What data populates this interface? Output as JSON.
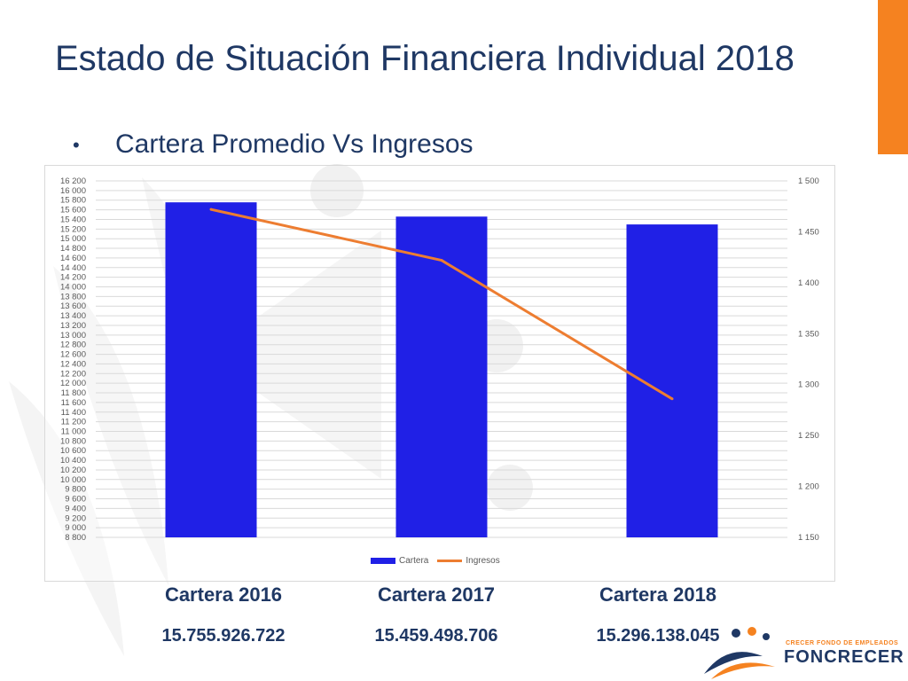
{
  "slide": {
    "title": "Estado de Situación Financiera Individual 2018",
    "bullet": "•",
    "subtitle": "Cartera Promedio Vs Ingresos",
    "logo_tagline": "CRECER FONDO DE EMPLEADOS",
    "logo_name": "FONCRECER",
    "accent_color": "#f58220",
    "title_color": "#1f3864"
  },
  "summary": [
    {
      "label": "Cartera 2016",
      "value": "15.755.926.722"
    },
    {
      "label": "Cartera 2017",
      "value": "15.459.498.706"
    },
    {
      "label": "Cartera 2018",
      "value": "15.296.138.045"
    }
  ],
  "chart_data": {
    "type": "bar",
    "categories": [
      "",
      "",
      ""
    ],
    "series": [
      {
        "name": "Cartera",
        "type": "bar",
        "axis": "left",
        "color": "#2020e6",
        "values": [
          15755,
          15459,
          15296
        ]
      },
      {
        "name": "Ingresos",
        "type": "line",
        "axis": "right",
        "color": "#ed7d31",
        "values": [
          1472,
          1422,
          1286
        ]
      }
    ],
    "y_left": {
      "min": 8800,
      "max": 16200,
      "step": 200
    },
    "y_right": {
      "min": 1150,
      "max": 1500,
      "step": 50
    },
    "grid": true,
    "legend": "bottom"
  }
}
